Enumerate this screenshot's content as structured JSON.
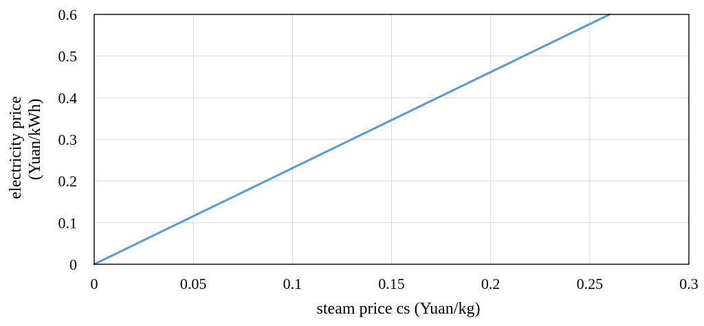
{
  "chart_data": {
    "type": "line",
    "title": "",
    "xlabel": "steam price cs (Yuan/kg)",
    "ylabel_line1": "electricity price",
    "ylabel_line2": "(Yuan/kWh)",
    "xlim": [
      0,
      0.3
    ],
    "ylim": [
      0,
      0.6
    ],
    "x_ticks": [
      "0",
      "0.05",
      "0.1",
      "0.15",
      "0.2",
      "0.25",
      "0.3"
    ],
    "y_ticks": [
      "0",
      "0.1",
      "0.2",
      "0.3",
      "0.4",
      "0.5",
      "0.6"
    ],
    "grid": true,
    "legend": "none",
    "series": [
      {
        "color": "#5B9BD5",
        "x": [
          0,
          0.05,
          0.1,
          0.15,
          0.2,
          0.25,
          0.26
        ],
        "y": [
          0,
          0.1154,
          0.2308,
          0.3462,
          0.4615,
          0.5769,
          0.6
        ]
      }
    ],
    "gridline_color": "#D9D9D9",
    "frame_color": "#000000"
  }
}
